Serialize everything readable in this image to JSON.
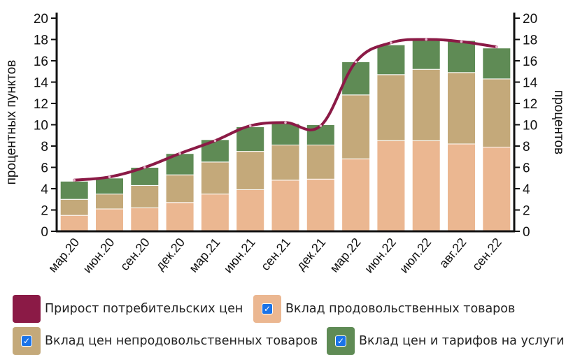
{
  "colors": {
    "inflation": "#8b1a46",
    "food": "#ebb791",
    "nonfood": "#c4a97a",
    "services": "#5f8b55",
    "axis": "#111111",
    "checkbox": "#1a73e8"
  },
  "chart_data": {
    "type": "bar",
    "stacked": true,
    "categories": [
      "мар.20",
      "июн.20",
      "сен.20",
      "дек.20",
      "мар.21",
      "июн.21",
      "сен.21",
      "дек.21",
      "мар.22",
      "июн.22",
      "июл.22",
      "авг.22",
      "сен.22"
    ],
    "series": [
      {
        "name": "Вклад продовольственных товаров",
        "kind": "bar",
        "color_key": "food",
        "values": [
          1.5,
          2.1,
          2.2,
          2.7,
          3.5,
          3.9,
          4.8,
          4.9,
          6.8,
          8.5,
          8.5,
          8.2,
          7.9
        ]
      },
      {
        "name": "Вклад цен непродовольственных товаров",
        "kind": "bar",
        "color_key": "nonfood",
        "values": [
          1.5,
          1.4,
          2.1,
          2.6,
          3.0,
          3.6,
          3.3,
          3.2,
          6.0,
          6.2,
          6.7,
          6.7,
          6.4
        ]
      },
      {
        "name": "Вклад цен и тарифов на услуги",
        "kind": "bar",
        "color_key": "services",
        "values": [
          1.7,
          1.5,
          1.7,
          2.0,
          2.1,
          2.3,
          2.0,
          1.9,
          3.1,
          2.8,
          2.8,
          3.0,
          2.9
        ]
      },
      {
        "name": "Прирост потребительских цен",
        "kind": "line",
        "color_key": "inflation",
        "values": [
          4.8,
          5.1,
          6.0,
          7.3,
          8.5,
          9.9,
          10.2,
          9.9,
          15.9,
          17.7,
          18.0,
          17.8,
          17.3
        ]
      }
    ],
    "ylabel_left": "процентных пунктов",
    "ylabel_right": "процентов",
    "ylim": [
      0,
      20
    ],
    "yticks": [
      "0",
      "2",
      "4",
      "6",
      "8",
      "10",
      "12",
      "14",
      "16",
      "18",
      "20"
    ],
    "grid": false
  },
  "legend": [
    {
      "label": "Прирост потребительских цен",
      "color_key": "inflation",
      "checked": false
    },
    {
      "label": "Вклад продовольственных товаров",
      "color_key": "food",
      "checked": true
    },
    {
      "label": "Вклад цен непродовольственных товаров",
      "color_key": "nonfood",
      "checked": true
    },
    {
      "label": "Вклад цен и тарифов на услуги",
      "color_key": "services",
      "checked": true
    }
  ],
  "icons": {
    "checkbox": "checkbox-checked-icon"
  }
}
